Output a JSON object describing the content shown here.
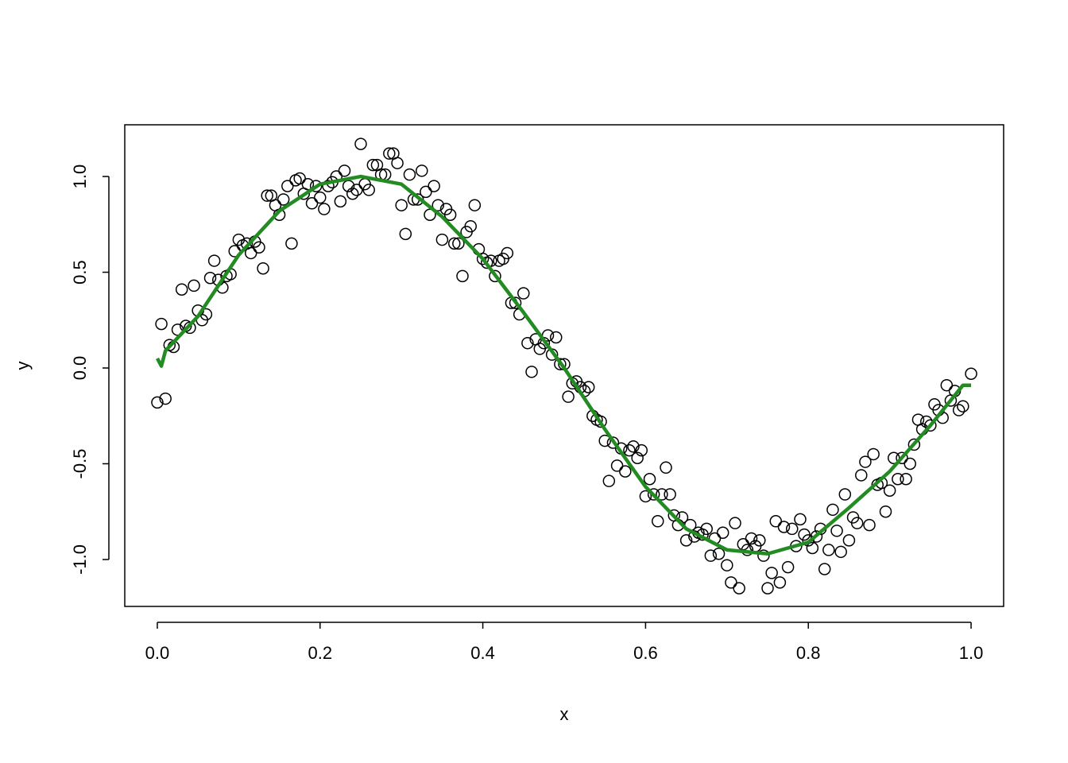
{
  "chart_data": {
    "type": "scatter",
    "xlabel": "x",
    "ylabel": "y",
    "xlim": [
      -0.04,
      1.04
    ],
    "ylim": [
      -1.245,
      1.27
    ],
    "xticks": [
      {
        "value": 0,
        "label": "0.0"
      },
      0.2,
      0.4,
      0.6,
      0.8,
      {
        "value": 1,
        "label": "1.0"
      }
    ],
    "yticks": [
      {
        "value": -1,
        "label": "-1.0"
      },
      -0.5,
      {
        "value": 0,
        "label": "0.0"
      },
      0.5,
      {
        "value": 1,
        "label": "1.0"
      }
    ],
    "series": [
      {
        "type": "scatter",
        "color": "#000000",
        "x": [
          0,
          0.005,
          0.01,
          0.015,
          0.02,
          0.025,
          0.03,
          0.035,
          0.04,
          0.045,
          0.05,
          0.055,
          0.06,
          0.065,
          0.07,
          0.075,
          0.08,
          0.085,
          0.09,
          0.095,
          0.1,
          0.105,
          0.11,
          0.115,
          0.12,
          0.125,
          0.13,
          0.135,
          0.14,
          0.145,
          0.15,
          0.155,
          0.16,
          0.165,
          0.17,
          0.175,
          0.18,
          0.185,
          0.19,
          0.195,
          0.2,
          0.205,
          0.21,
          0.215,
          0.22,
          0.225,
          0.23,
          0.235,
          0.24,
          0.245,
          0.25,
          0.255,
          0.26,
          0.265,
          0.27,
          0.275,
          0.28,
          0.285,
          0.29,
          0.295,
          0.3,
          0.305,
          0.31,
          0.315,
          0.32,
          0.325,
          0.33,
          0.335,
          0.34,
          0.345,
          0.35,
          0.355,
          0.36,
          0.365,
          0.37,
          0.375,
          0.38,
          0.385,
          0.39,
          0.395,
          0.4,
          0.405,
          0.41,
          0.415,
          0.42,
          0.425,
          0.43,
          0.435,
          0.44,
          0.445,
          0.45,
          0.455,
          0.46,
          0.465,
          0.47,
          0.475,
          0.48,
          0.485,
          0.49,
          0.495,
          0.5,
          0.505,
          0.51,
          0.515,
          0.52,
          0.525,
          0.53,
          0.535,
          0.54,
          0.545,
          0.55,
          0.555,
          0.56,
          0.565,
          0.57,
          0.575,
          0.58,
          0.585,
          0.59,
          0.595,
          0.6,
          0.605,
          0.61,
          0.615,
          0.62,
          0.625,
          0.63,
          0.635,
          0.64,
          0.645,
          0.65,
          0.655,
          0.66,
          0.665,
          0.67,
          0.675,
          0.68,
          0.685,
          0.69,
          0.695,
          0.7,
          0.705,
          0.71,
          0.715,
          0.72,
          0.725,
          0.73,
          0.735,
          0.74,
          0.745,
          0.75,
          0.755,
          0.76,
          0.765,
          0.77,
          0.775,
          0.78,
          0.785,
          0.79,
          0.795,
          0.8,
          0.805,
          0.81,
          0.815,
          0.82,
          0.825,
          0.83,
          0.835,
          0.84,
          0.845,
          0.85,
          0.855,
          0.86,
          0.865,
          0.87,
          0.875,
          0.88,
          0.885,
          0.89,
          0.895,
          0.9,
          0.905,
          0.91,
          0.915,
          0.92,
          0.925,
          0.93,
          0.935,
          0.94,
          0.945,
          0.95,
          0.955,
          0.96,
          0.965,
          0.97,
          0.975,
          0.98,
          0.985,
          0.99,
          1
        ],
        "values": [
          -0.18,
          0.23,
          -0.16,
          0.12,
          0.11,
          0.2,
          0.41,
          0.22,
          0.21,
          0.43,
          0.3,
          0.25,
          0.28,
          0.47,
          0.56,
          0.46,
          0.42,
          0.48,
          0.49,
          0.61,
          0.67,
          0.64,
          0.65,
          0.6,
          0.66,
          0.63,
          0.52,
          0.9,
          0.9,
          0.85,
          0.8,
          0.88,
          0.95,
          0.65,
          0.98,
          0.99,
          0.91,
          0.96,
          0.86,
          0.95,
          0.89,
          0.83,
          0.95,
          0.97,
          1,
          0.87,
          1.03,
          0.95,
          0.91,
          0.93,
          1.17,
          0.96,
          0.93,
          1.06,
          1.06,
          1.01,
          1.01,
          1.12,
          1.12,
          1.07,
          0.85,
          0.7,
          1.01,
          0.88,
          0.88,
          1.03,
          0.92,
          0.8,
          0.95,
          0.85,
          0.67,
          0.83,
          0.8,
          0.65,
          0.65,
          0.48,
          0.71,
          0.74,
          0.85,
          0.62,
          0.57,
          0.55,
          0.56,
          0.48,
          0.56,
          0.57,
          0.6,
          0.34,
          0.34,
          0.28,
          0.39,
          0.13,
          -0.02,
          0.15,
          0.1,
          0.13,
          0.17,
          0.07,
          0.16,
          0.02,
          0.02,
          -0.15,
          -0.08,
          -0.07,
          -0.1,
          -0.12,
          -0.1,
          -0.25,
          -0.27,
          -0.28,
          -0.38,
          -0.59,
          -0.39,
          -0.51,
          -0.42,
          -0.54,
          -0.43,
          -0.41,
          -0.47,
          -0.43,
          -0.67,
          -0.58,
          -0.66,
          -0.8,
          -0.66,
          -0.52,
          -0.66,
          -0.77,
          -0.82,
          -0.78,
          -0.9,
          -0.82,
          -0.88,
          -0.86,
          -0.87,
          -0.84,
          -0.98,
          -0.89,
          -0.97,
          -0.86,
          -1.03,
          -1.12,
          -0.81,
          -1.15,
          -0.92,
          -0.95,
          -0.89,
          -0.93,
          -0.9,
          -0.98,
          -1.15,
          -1.07,
          -0.8,
          -1.12,
          -0.83,
          -1.04,
          -0.84,
          -0.93,
          -0.79,
          -0.87,
          -0.9,
          -0.94,
          -0.88,
          -0.84,
          -1.05,
          -0.95,
          -0.74,
          -0.85,
          -0.96,
          -0.66,
          -0.9,
          -0.78,
          -0.81,
          -0.56,
          -0.49,
          -0.82,
          -0.45,
          -0.61,
          -0.6,
          -0.75,
          -0.64,
          -0.47,
          -0.58,
          -0.47,
          -0.58,
          -0.5,
          -0.4,
          -0.27,
          -0.32,
          -0.28,
          -0.3,
          -0.19,
          -0.22,
          -0.26,
          -0.09,
          -0.17,
          -0.12,
          -0.22,
          -0.2,
          -0.03
        ]
      },
      {
        "type": "line",
        "color": "#228b22",
        "x": [
          0,
          0.005,
          0.01,
          0.05,
          0.1,
          0.15,
          0.2,
          0.25,
          0.3,
          0.35,
          0.4,
          0.45,
          0.5,
          0.55,
          0.6,
          0.65,
          0.7,
          0.75,
          0.8,
          0.85,
          0.9,
          0.95,
          0.99,
          1
        ],
        "values": [
          0.05,
          0.01,
          0.09,
          0.27,
          0.59,
          0.82,
          0.96,
          1,
          0.96,
          0.79,
          0.57,
          0.29,
          0,
          -0.32,
          -0.62,
          -0.84,
          -0.95,
          -0.97,
          -0.91,
          -0.73,
          -0.54,
          -0.3,
          -0.09,
          -0.09
        ]
      }
    ]
  }
}
